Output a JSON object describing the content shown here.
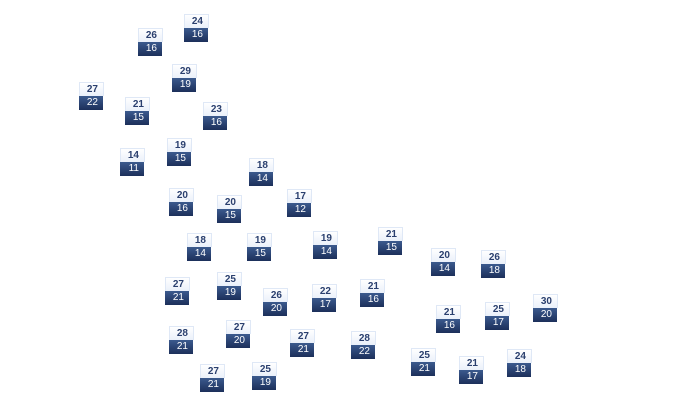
{
  "markers": [
    {
      "high": "24",
      "low": "16"
    },
    {
      "high": "26",
      "low": "16"
    },
    {
      "high": "29",
      "low": "19"
    },
    {
      "high": "27",
      "low": "22"
    },
    {
      "high": "21",
      "low": "15"
    },
    {
      "high": "23",
      "low": "16"
    },
    {
      "high": "19",
      "low": "15"
    },
    {
      "high": "14",
      "low": "11"
    },
    {
      "high": "18",
      "low": "14"
    },
    {
      "high": "20",
      "low": "16"
    },
    {
      "high": "20",
      "low": "15"
    },
    {
      "high": "17",
      "low": "12"
    },
    {
      "high": "18",
      "low": "14"
    },
    {
      "high": "19",
      "low": "15"
    },
    {
      "high": "19",
      "low": "14"
    },
    {
      "high": "27",
      "low": "21"
    },
    {
      "high": "25",
      "low": "19"
    },
    {
      "high": "26",
      "low": "20"
    },
    {
      "high": "22",
      "low": "17"
    },
    {
      "high": "21",
      "low": "16"
    },
    {
      "high": "28",
      "low": "21"
    },
    {
      "high": "27",
      "low": "20"
    },
    {
      "high": "27",
      "low": "21"
    },
    {
      "high": "28",
      "low": "22"
    },
    {
      "high": "27",
      "low": "21"
    },
    {
      "high": "25",
      "low": "19"
    },
    {
      "high": "21",
      "low": "15"
    },
    {
      "high": "20",
      "low": "14"
    },
    {
      "high": "26",
      "low": "18"
    },
    {
      "high": "21",
      "low": "16"
    },
    {
      "high": "25",
      "low": "17"
    },
    {
      "high": "30",
      "low": "20"
    },
    {
      "high": "25",
      "low": "21"
    },
    {
      "high": "21",
      "low": "17"
    },
    {
      "high": "24",
      "low": "18"
    }
  ],
  "colors": {
    "high_bg": "#f2f6fc",
    "low_bg": "#2a4375",
    "high_text": "#2a3f6e",
    "low_text": "#ffffff"
  }
}
